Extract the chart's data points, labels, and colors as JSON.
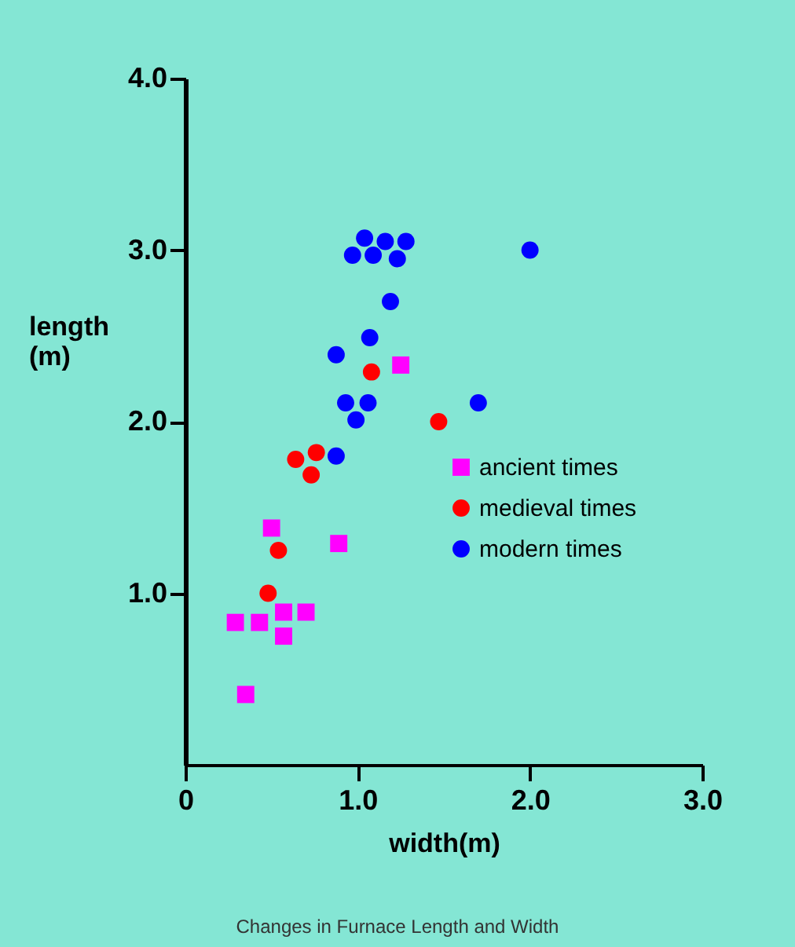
{
  "chart_data": {
    "type": "scatter",
    "xlabel": "width(m)",
    "ylabel": "length (m)",
    "xlim": [
      0,
      3.0
    ],
    "ylim": [
      0,
      4.0
    ],
    "xticks": [
      {
        "value": 0,
        "label": "0"
      },
      {
        "value": 1,
        "label": "1.0"
      },
      {
        "value": 2,
        "label": "2.0"
      },
      {
        "value": 3,
        "label": "3.0"
      }
    ],
    "yticks": [
      {
        "value": 1,
        "label": "1.0"
      },
      {
        "value": 2,
        "label": "2.0"
      },
      {
        "value": 3,
        "label": "3.0"
      },
      {
        "value": 4,
        "label": "4.0"
      }
    ],
    "grid": false,
    "legend": "right",
    "series": [
      {
        "name": "ancient times",
        "color": "#ff00ff",
        "marker": "square",
        "x": [
          1.25,
          0.5,
          0.89,
          0.29,
          0.43,
          0.57,
          0.7,
          0.57,
          0.35
        ],
        "values": [
          2.33,
          1.38,
          1.29,
          0.83,
          0.83,
          0.89,
          0.89,
          0.75,
          0.41
        ]
      },
      {
        "name": "medieval times",
        "color": "#ff0000",
        "marker": "circle",
        "x": [
          1.08,
          1.47,
          0.64,
          0.76,
          0.73,
          0.54,
          0.48
        ],
        "values": [
          2.29,
          2.0,
          1.78,
          1.82,
          1.69,
          1.25,
          1.0
        ]
      },
      {
        "name": "modern times",
        "color": "#0000ff",
        "marker": "circle",
        "x": [
          1.04,
          1.16,
          1.28,
          0.97,
          1.09,
          1.23,
          2.0,
          1.19,
          1.07,
          0.875,
          0.93,
          1.06,
          0.99,
          1.7,
          0.875
        ],
        "values": [
          3.07,
          3.05,
          3.05,
          2.97,
          2.97,
          2.95,
          3.0,
          2.7,
          2.49,
          2.39,
          2.11,
          2.11,
          2.01,
          2.11,
          1.8
        ]
      }
    ],
    "annotations": [
      "Changes in Furnace Length and Width"
    ]
  }
}
